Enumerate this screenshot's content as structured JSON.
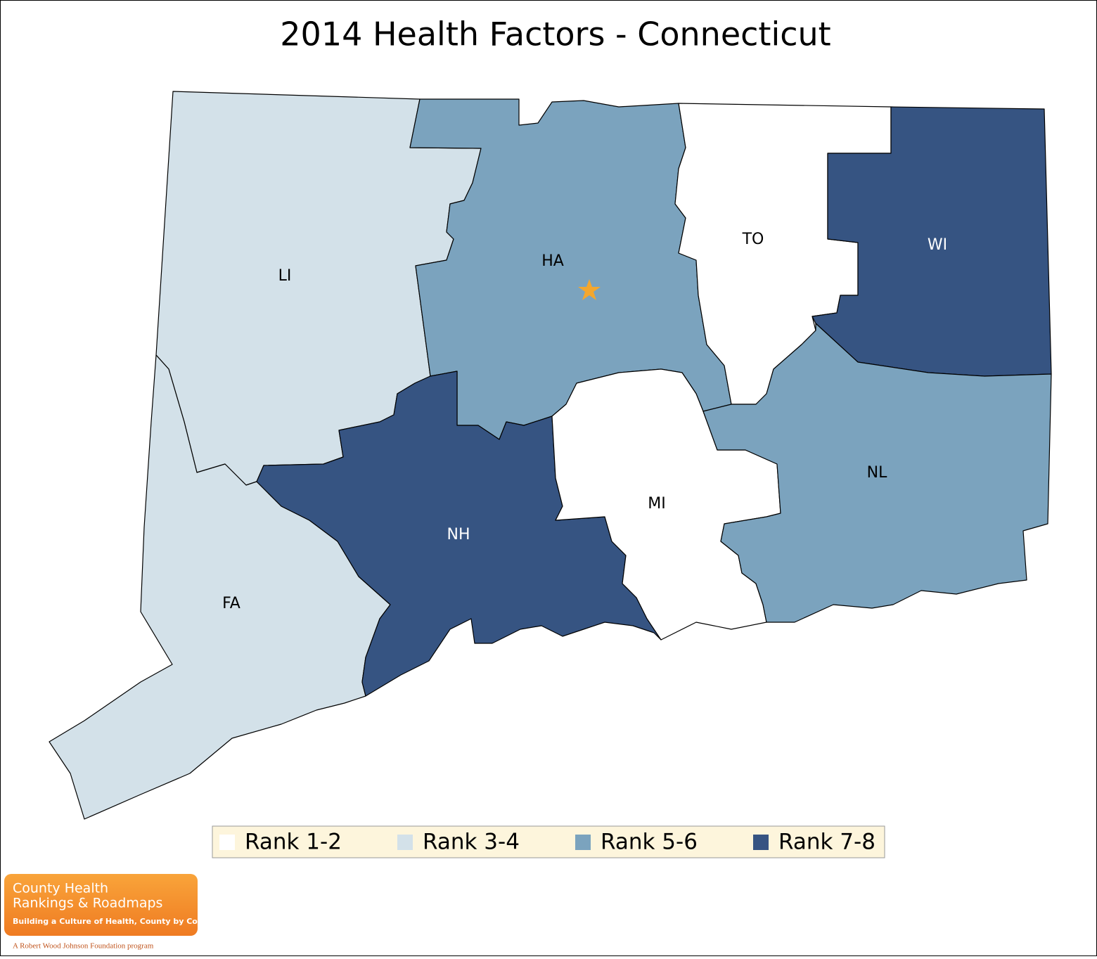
{
  "title": "2014 Health Factors - Connecticut",
  "counties": [
    {
      "label": "LI",
      "color": "#d3e1e9"
    },
    {
      "label": "FA",
      "color": "#d3e1e9"
    },
    {
      "label": "HA",
      "color": "#7ba3be"
    },
    {
      "label": "TO",
      "color": "#ffffff"
    },
    {
      "label": "WI",
      "color": "#365482"
    },
    {
      "label": "NH",
      "color": "#365482"
    },
    {
      "label": "MI",
      "color": "#ffffff"
    },
    {
      "label": "NL",
      "color": "#7ba3be"
    }
  ],
  "legend": [
    {
      "label": "Rank 1-2",
      "color": "#ffffff"
    },
    {
      "label": "Rank 3-4",
      "color": "#d3e1e9"
    },
    {
      "label": "Rank 5-6",
      "color": "#7ba3be"
    },
    {
      "label": "Rank 7-8",
      "color": "#365482"
    }
  ],
  "logo": {
    "line1": "County Health",
    "line2": "Rankings & Roadmaps",
    "tagline": "Building a Culture of Health, County by County",
    "footer": "A Robert Wood Johnson Foundation program"
  }
}
